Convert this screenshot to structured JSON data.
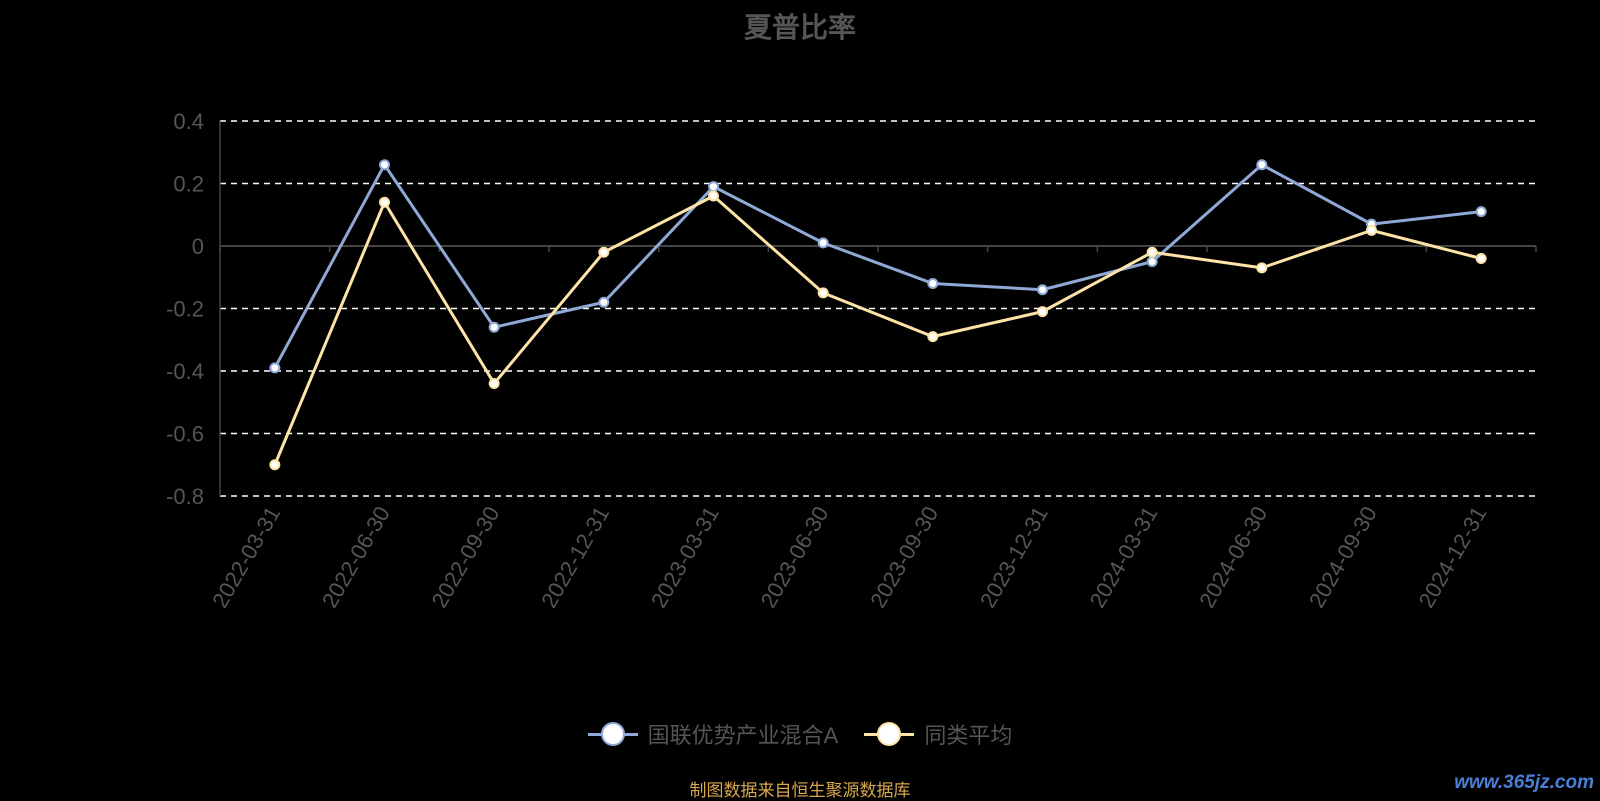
{
  "chart_data": {
    "type": "line",
    "title": "夏普比率",
    "categories": [
      "2022-03-31",
      "2022-06-30",
      "2022-09-30",
      "2022-12-31",
      "2023-03-31",
      "2023-06-30",
      "2023-09-30",
      "2023-12-31",
      "2024-03-31",
      "2024-06-30",
      "2024-09-30",
      "2024-12-31"
    ],
    "series": [
      {
        "name": "国联优势产业混合A",
        "color": "#8fa9d6",
        "values": [
          -0.39,
          0.26,
          -0.26,
          -0.18,
          0.19,
          0.01,
          -0.12,
          -0.14,
          -0.05,
          0.26,
          0.07,
          0.11
        ]
      },
      {
        "name": "同类平均",
        "color": "#fde3a5",
        "values": [
          -0.7,
          0.14,
          -0.44,
          -0.02,
          0.16,
          -0.15,
          -0.29,
          -0.21,
          -0.02,
          -0.07,
          0.05,
          -0.04
        ]
      }
    ],
    "ylim": [
      -0.8,
      0.4
    ],
    "yticks": [
      "0.4",
      "0.2",
      "0",
      "-0.2",
      "-0.4",
      "-0.6",
      "-0.8"
    ],
    "ytick_values": [
      0.4,
      0.2,
      0,
      -0.2,
      -0.4,
      -0.6,
      -0.8
    ],
    "grid": true,
    "legend_position": "bottom"
  },
  "source_text": "制图数据来自恒生聚源数据库",
  "watermark_text": "www.365jz.com"
}
